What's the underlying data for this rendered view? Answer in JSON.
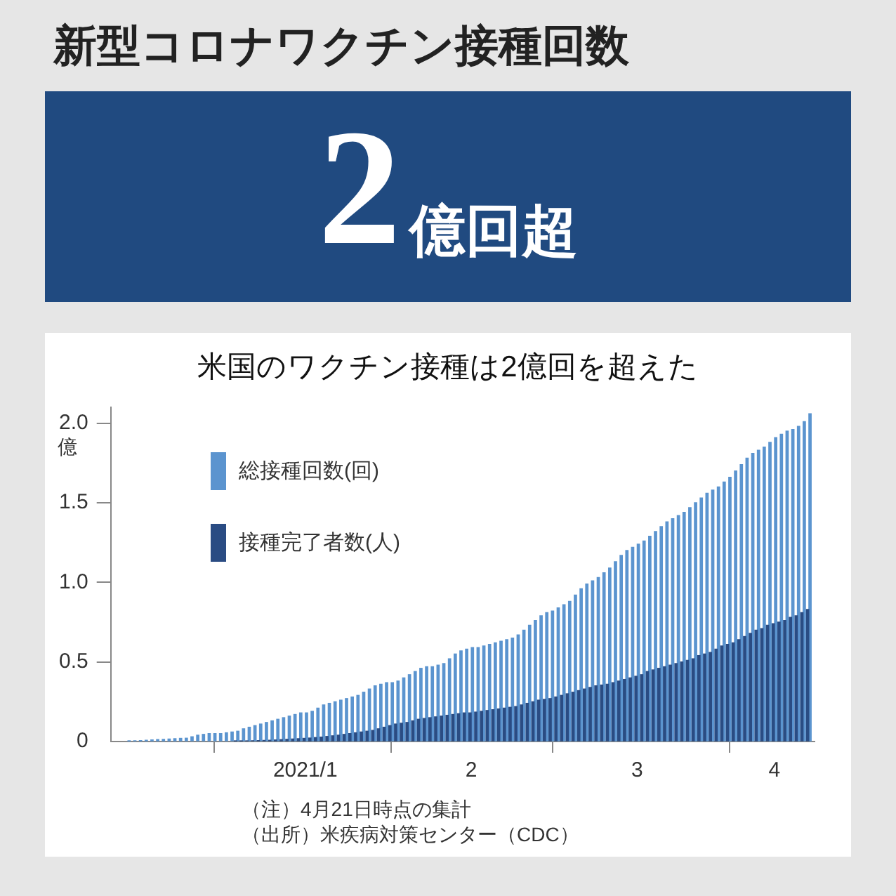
{
  "chart_data": {
    "type": "bar",
    "title": "新型コロナワクチン接種回数",
    "subtitle": "米国のワクチン接種は2億回を超えた",
    "ylabel": "億",
    "annotations": [
      "2億回超",
      "（注）4月21日時点の集計",
      "（出所）米疾病対策センター（CDC）"
    ],
    "x": [
      "2020-12-17",
      "2020-12-18",
      "2020-12-19",
      "2020-12-20",
      "2020-12-21",
      "2020-12-22",
      "2020-12-23",
      "2020-12-24",
      "2020-12-25",
      "2020-12-26",
      "2020-12-27",
      "2020-12-28",
      "2020-12-29",
      "2020-12-30",
      "2020-12-31",
      "2021-01-01",
      "2021-01-02",
      "2021-01-03",
      "2021-01-04",
      "2021-01-05",
      "2021-01-06",
      "2021-01-07",
      "2021-01-08",
      "2021-01-09",
      "2021-01-10",
      "2021-01-11",
      "2021-01-12",
      "2021-01-13",
      "2021-01-14",
      "2021-01-15",
      "2021-01-16",
      "2021-01-17",
      "2021-01-18",
      "2021-01-19",
      "2021-01-20",
      "2021-01-21",
      "2021-01-22",
      "2021-01-23",
      "2021-01-24",
      "2021-01-25",
      "2021-01-26",
      "2021-01-27",
      "2021-01-28",
      "2021-01-29",
      "2021-01-30",
      "2021-01-31",
      "2021-02-01",
      "2021-02-02",
      "2021-02-03",
      "2021-02-04",
      "2021-02-05",
      "2021-02-06",
      "2021-02-07",
      "2021-02-08",
      "2021-02-09",
      "2021-02-10",
      "2021-02-11",
      "2021-02-12",
      "2021-02-13",
      "2021-02-14",
      "2021-02-15",
      "2021-02-16",
      "2021-02-17",
      "2021-02-18",
      "2021-02-19",
      "2021-02-20",
      "2021-02-21",
      "2021-02-22",
      "2021-02-23",
      "2021-02-24",
      "2021-02-25",
      "2021-02-26",
      "2021-02-27",
      "2021-02-28",
      "2021-03-01",
      "2021-03-02",
      "2021-03-03",
      "2021-03-04",
      "2021-03-05",
      "2021-03-06",
      "2021-03-07",
      "2021-03-08",
      "2021-03-09",
      "2021-03-10",
      "2021-03-11",
      "2021-03-12",
      "2021-03-13",
      "2021-03-14",
      "2021-03-15",
      "2021-03-16",
      "2021-03-17",
      "2021-03-18",
      "2021-03-19",
      "2021-03-20",
      "2021-03-21",
      "2021-03-22",
      "2021-03-23",
      "2021-03-24",
      "2021-03-25",
      "2021-03-26",
      "2021-03-27",
      "2021-03-28",
      "2021-03-29",
      "2021-03-30",
      "2021-03-31",
      "2021-04-01",
      "2021-04-02",
      "2021-04-03",
      "2021-04-04",
      "2021-04-05",
      "2021-04-06",
      "2021-04-07",
      "2021-04-08",
      "2021-04-09",
      "2021-04-10",
      "2021-04-11",
      "2021-04-12",
      "2021-04-13",
      "2021-04-14",
      "2021-04-15"
    ],
    "series": [
      {
        "name": "総接種回数(回)",
        "color": "#5b94cf",
        "values": [
          0.003,
          0.004,
          0.006,
          0.008,
          0.01,
          0.012,
          0.014,
          0.016,
          0.018,
          0.02,
          0.021,
          0.03,
          0.04,
          0.045,
          0.05,
          0.05,
          0.05,
          0.055,
          0.06,
          0.065,
          0.08,
          0.09,
          0.1,
          0.11,
          0.12,
          0.13,
          0.14,
          0.15,
          0.16,
          0.17,
          0.18,
          0.18,
          0.19,
          0.21,
          0.23,
          0.24,
          0.25,
          0.26,
          0.27,
          0.28,
          0.29,
          0.31,
          0.33,
          0.35,
          0.36,
          0.37,
          0.37,
          0.38,
          0.4,
          0.42,
          0.44,
          0.46,
          0.47,
          0.47,
          0.48,
          0.49,
          0.52,
          0.55,
          0.57,
          0.58,
          0.59,
          0.59,
          0.6,
          0.61,
          0.62,
          0.63,
          0.64,
          0.65,
          0.67,
          0.7,
          0.73,
          0.76,
          0.79,
          0.81,
          0.82,
          0.84,
          0.86,
          0.88,
          0.92,
          0.96,
          0.99,
          1.01,
          1.03,
          1.06,
          1.09,
          1.13,
          1.17,
          1.2,
          1.22,
          1.24,
          1.26,
          1.29,
          1.32,
          1.35,
          1.38,
          1.4,
          1.42,
          1.44,
          1.47,
          1.5,
          1.53,
          1.56,
          1.58,
          1.6,
          1.63,
          1.66,
          1.7,
          1.74,
          1.78,
          1.81,
          1.83,
          1.85,
          1.88,
          1.91,
          1.93,
          1.95,
          1.96,
          1.98,
          2.01,
          2.06
        ]
      },
      {
        "name": "接種完了者数(人)",
        "color": "#2a4c83",
        "values": [
          null,
          null,
          null,
          null,
          null,
          null,
          null,
          null,
          null,
          null,
          null,
          null,
          null,
          null,
          null,
          null,
          null,
          null,
          null,
          0.002,
          0.003,
          0.004,
          0.005,
          0.006,
          0.007,
          0.008,
          0.01,
          0.012,
          0.014,
          0.016,
          0.018,
          0.02,
          0.022,
          0.025,
          0.028,
          0.032,
          0.036,
          0.04,
          0.045,
          0.05,
          0.055,
          0.06,
          0.065,
          0.07,
          0.08,
          0.09,
          0.1,
          0.11,
          0.115,
          0.12,
          0.13,
          0.14,
          0.145,
          0.15,
          0.155,
          0.16,
          0.165,
          0.17,
          0.175,
          0.18,
          0.18,
          0.185,
          0.19,
          0.195,
          0.2,
          0.205,
          0.21,
          0.215,
          0.22,
          0.23,
          0.24,
          0.25,
          0.26,
          0.265,
          0.27,
          0.28,
          0.29,
          0.3,
          0.31,
          0.32,
          0.33,
          0.34,
          0.35,
          0.355,
          0.36,
          0.37,
          0.38,
          0.39,
          0.4,
          0.41,
          0.42,
          0.44,
          0.45,
          0.46,
          0.47,
          0.48,
          0.49,
          0.5,
          0.51,
          0.52,
          0.54,
          0.55,
          0.56,
          0.58,
          0.6,
          0.61,
          0.62,
          0.64,
          0.66,
          0.68,
          0.7,
          0.71,
          0.73,
          0.74,
          0.75,
          0.76,
          0.78,
          0.79,
          0.81,
          0.83
        ]
      }
    ],
    "xlim": [
      "2020-12-14",
      "2021-04-16"
    ],
    "xticks": [
      {
        "value": "2021-01-01",
        "label": null
      },
      {
        "value": "2021-01-17",
        "label": "2021/1"
      },
      {
        "value": "2021-02-01",
        "label": null
      },
      {
        "value": "2021-02-15",
        "label": "2"
      },
      {
        "value": "2021-03-01",
        "label": null
      },
      {
        "value": "2021-03-16",
        "label": "3"
      },
      {
        "value": "2021-04-01",
        "label": null
      },
      {
        "value": "2021-04-09",
        "label": "4"
      }
    ],
    "ylim": [
      0,
      2.1
    ],
    "yticks": [
      0,
      {
        "value": 0.5,
        "label": "0.5"
      },
      {
        "value": 1,
        "label": "1.0"
      },
      {
        "value": 1.5,
        "label": "1.5"
      },
      {
        "value": 2,
        "label": "2.0"
      }
    ],
    "legend": "top left"
  }
}
